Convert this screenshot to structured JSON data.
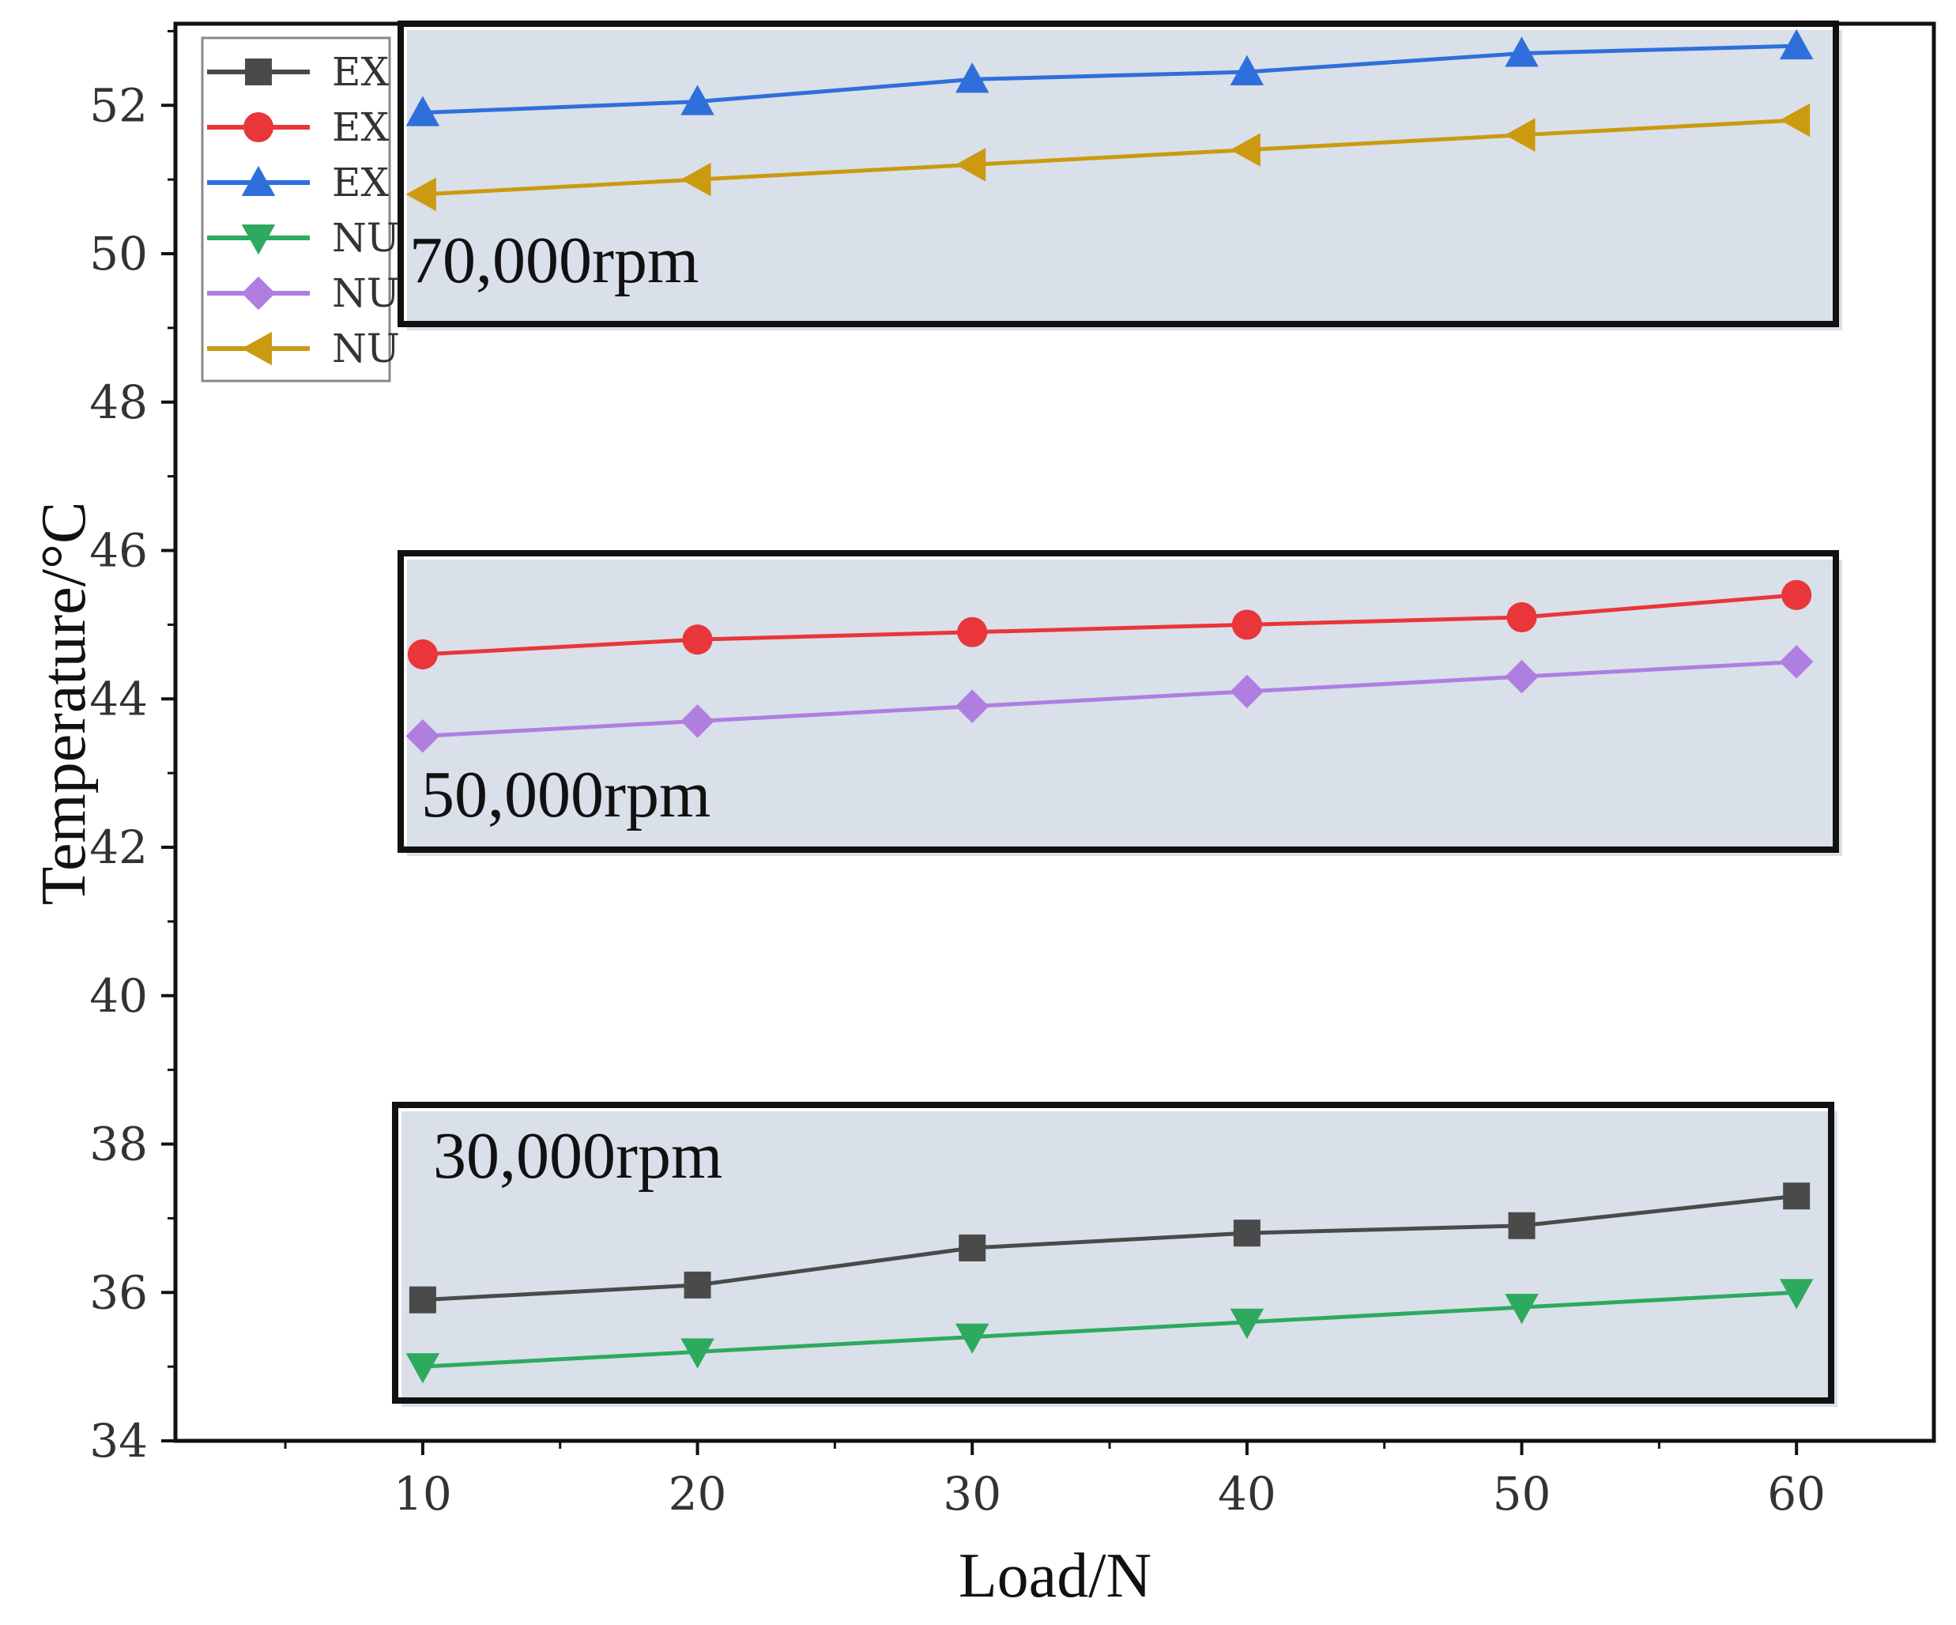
{
  "chart_data": {
    "type": "line",
    "title": "",
    "xlabel": "Load/N",
    "ylabel": "Temperature/°C",
    "xlim": [
      1,
      65
    ],
    "ylim": [
      34,
      53.1
    ],
    "xticks": [
      10,
      20,
      30,
      40,
      50,
      60
    ],
    "yticks": [
      34,
      36,
      38,
      40,
      42,
      44,
      46,
      48,
      50,
      52
    ],
    "grid": false,
    "legend_position": "top-left",
    "x": [
      10,
      20,
      30,
      40,
      50,
      60
    ],
    "series": [
      {
        "name": "EX",
        "color": "#4a4a4a",
        "marker": "square",
        "values": [
          35.9,
          36.1,
          36.6,
          36.8,
          36.9,
          37.3
        ]
      },
      {
        "name": "EX",
        "color": "#e8363a",
        "marker": "circle",
        "values": [
          44.6,
          44.8,
          44.9,
          45.0,
          45.1,
          45.4
        ]
      },
      {
        "name": "EX",
        "color": "#2f6fdb",
        "marker": "triangle-up",
        "values": [
          51.9,
          52.05,
          52.35,
          52.45,
          52.7,
          52.8
        ]
      },
      {
        "name": "NU",
        "color": "#2eaa5e",
        "marker": "triangle-down",
        "values": [
          35.0,
          35.2,
          35.4,
          35.6,
          35.8,
          36.0
        ]
      },
      {
        "name": "NU",
        "color": "#b07ee0",
        "marker": "diamond",
        "values": [
          43.5,
          43.7,
          43.9,
          44.1,
          44.3,
          44.5
        ]
      },
      {
        "name": "NU",
        "color": "#cc9a10",
        "marker": "triangle-left",
        "values": [
          50.8,
          51.0,
          51.2,
          51.4,
          51.6,
          51.8
        ]
      }
    ],
    "annotations": [
      {
        "text": "70,000rpm"
      },
      {
        "text": "50,000rpm"
      },
      {
        "text": "30,000rpm"
      }
    ]
  }
}
